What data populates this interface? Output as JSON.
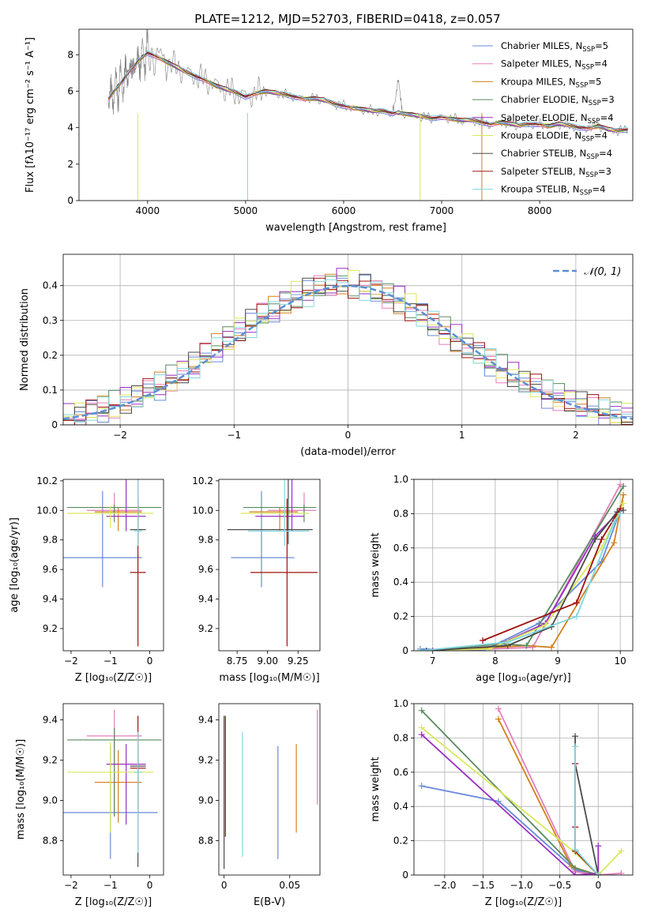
{
  "figure": {
    "title": "PLATE=1212, MJD=52703, FIBERID=0418, z=0.057"
  },
  "chart_data": [
    {
      "id": "spectrum",
      "type": "line",
      "title": "PLATE=1212, MJD=52703, FIBERID=0418, z=0.057",
      "xlabel": "wavelength [Angstrom, rest frame]",
      "ylabel": "Flux [f_λ 10^-17 erg cm^-2 s^-1 A^-1]",
      "xlim": [
        3300,
        8950
      ],
      "ylim": [
        0,
        9.4
      ],
      "xticks": [
        4000,
        5000,
        6000,
        7000,
        8000
      ],
      "yticks": [
        0,
        2,
        4,
        6,
        8
      ],
      "legend_position": "top-right",
      "data_series": {
        "name": "data",
        "color": "#808080",
        "x": [
          3600,
          3650,
          3700,
          3750,
          3800,
          3850,
          3900,
          3950,
          4000,
          4100,
          4200,
          4300,
          4400,
          4500,
          4600,
          4700,
          4800,
          4900,
          5000,
          5100,
          5200,
          5300,
          5400,
          5500,
          5600,
          5700,
          5800,
          5900,
          6000,
          6100,
          6200,
          6300,
          6400,
          6500,
          6560,
          6600,
          6700,
          6800,
          6900,
          7000,
          7100,
          7200,
          7300,
          7400,
          7500,
          7600,
          7700,
          7800,
          7900,
          8000,
          8100,
          8200,
          8300,
          8400,
          8500,
          8600,
          8700,
          8800,
          8900
        ],
        "y": [
          5.6,
          5.9,
          6.3,
          6.6,
          7.0,
          7.3,
          7.6,
          7.9,
          8.1,
          7.9,
          7.6,
          7.3,
          7.0,
          6.8,
          6.6,
          6.3,
          6.1,
          5.9,
          5.7,
          5.9,
          6.0,
          5.9,
          5.8,
          5.7,
          5.6,
          5.6,
          5.5,
          5.3,
          5.2,
          5.1,
          5.0,
          4.9,
          4.9,
          4.8,
          6.6,
          4.8,
          4.7,
          4.6,
          4.5,
          4.6,
          4.5,
          4.4,
          4.4,
          4.3,
          4.2,
          4.3,
          4.2,
          4.1,
          4.2,
          4.2,
          4.1,
          4.2,
          4.1,
          4.0,
          4.0,
          4.1,
          3.9,
          3.8,
          3.9
        ]
      },
      "model_series": [
        {
          "name": "Chabrier MILES",
          "nssp": "5",
          "color": "#6a89d8"
        },
        {
          "name": "Salpeter MILES",
          "nssp": "4",
          "color": "#e37fba"
        },
        {
          "name": "Kroupa MILES",
          "nssp": "5",
          "color": "#d3801c"
        },
        {
          "name": "Chabrier ELODIE",
          "nssp": "3",
          "color": "#5a8a5e"
        },
        {
          "name": "Salpeter ELODIE",
          "nssp": "4",
          "color": "#9a2ec2"
        },
        {
          "name": "Kroupa ELODIE",
          "nssp": "4",
          "color": "#d9e85a"
        },
        {
          "name": "Chabrier STELIB",
          "nssp": "4",
          "color": "#4a4a4a"
        },
        {
          "name": "Salpeter STELIB",
          "nssp": "3",
          "color": "#a01010"
        },
        {
          "name": "Kroupa STELIB",
          "nssp": "4",
          "color": "#7fd7e0"
        }
      ]
    },
    {
      "id": "residuals",
      "type": "histogram",
      "xlabel": "(data-model)/error",
      "ylabel": "Normed distribution",
      "xlim": [
        -2.5,
        2.5
      ],
      "ylim": [
        0,
        0.49
      ],
      "xticks": [
        -2,
        -1,
        0,
        1,
        2
      ],
      "yticks": [
        0.0,
        0.1,
        0.2,
        0.3,
        0.4
      ],
      "grid": true,
      "legend_position": "top-right",
      "reference_curve": {
        "name": "𝒩(0, 1)",
        "color": "#5b8ed6",
        "style": "dashed"
      },
      "bin_edges_start": -2.5,
      "bin_width": 0.1,
      "base_profile": [
        0.018,
        0.028,
        0.038,
        0.045,
        0.055,
        0.068,
        0.08,
        0.095,
        0.11,
        0.13,
        0.15,
        0.17,
        0.195,
        0.22,
        0.245,
        0.27,
        0.29,
        0.31,
        0.33,
        0.35,
        0.37,
        0.38,
        0.39,
        0.4,
        0.41,
        0.4,
        0.395,
        0.38,
        0.37,
        0.355,
        0.335,
        0.315,
        0.29,
        0.27,
        0.245,
        0.225,
        0.2,
        0.18,
        0.16,
        0.14,
        0.12,
        0.105,
        0.09,
        0.078,
        0.065,
        0.055,
        0.045,
        0.038,
        0.03,
        0.025
      ]
    },
    {
      "id": "age_vs_Z",
      "type": "errorbar",
      "xlabel": "Z [log10(Z/Z☉)]",
      "ylabel": "age  [log10(age/yr)]",
      "xlim": [
        -2.2,
        0.35
      ],
      "ylim": [
        9.05,
        10.21
      ],
      "xticks": [
        -2,
        -1,
        0
      ],
      "yticks": [
        9.2,
        9.4,
        9.6,
        9.8,
        10.0,
        10.2
      ],
      "points": [
        {
          "x": -1.2,
          "xerr": [
            1.0,
            1.0
          ],
          "y": 9.68,
          "yerr": [
            0.2,
            0.45
          ],
          "color": "#6a89d8"
        },
        {
          "x": -0.9,
          "xerr": [
            0.7,
            0.7
          ],
          "y": 10.0,
          "yerr": [
            0.03,
            0.12
          ],
          "color": "#e37fba"
        },
        {
          "x": -0.8,
          "xerr": [
            0.6,
            0.6
          ],
          "y": 9.99,
          "yerr": [
            0.13,
            0.03
          ],
          "color": "#d3801c"
        },
        {
          "x": -0.9,
          "xerr": [
            1.2,
            1.2
          ],
          "y": 10.02,
          "yerr": [
            0.1,
            0.02
          ],
          "color": "#5a8a5e"
        },
        {
          "x": -0.6,
          "xerr": [
            0.5,
            0.5
          ],
          "y": 9.96,
          "yerr": [
            0.1,
            0.4
          ],
          "color": "#9a2ec2"
        },
        {
          "x": -1.0,
          "xerr": [
            1.1,
            1.1
          ],
          "y": 9.98,
          "yerr": [
            0.1,
            0.05
          ],
          "color": "#d9e85a"
        },
        {
          "x": -0.3,
          "xerr": [
            0.2,
            0.2
          ],
          "y": 9.87,
          "yerr": [
            0.1,
            0.75
          ],
          "color": "#4a4a4a"
        },
        {
          "x": -0.3,
          "xerr": [
            0.2,
            0.2
          ],
          "y": 9.58,
          "yerr": [
            0.5,
            0.5
          ],
          "color": "#a01010"
        },
        {
          "x": -0.3,
          "xerr": [
            0.1,
            0.1
          ],
          "y": 9.86,
          "yerr": [
            0.1,
            0.72
          ],
          "color": "#7fd7e0"
        }
      ]
    },
    {
      "id": "age_vs_mass",
      "type": "errorbar",
      "xlabel": "mass [log10(M/M☉)]",
      "ylabel": "",
      "xlim": [
        8.6,
        9.43
      ],
      "ylim": [
        9.05,
        10.21
      ],
      "xticks": [
        8.75,
        9.0,
        9.25
      ],
      "yticks": [
        9.2,
        9.4,
        9.6,
        9.8,
        10.0,
        10.2
      ],
      "points": [
        {
          "x": 8.95,
          "xerr": [
            0.25,
            0.27
          ],
          "y": 9.68,
          "yerr": [
            0.2,
            0.45
          ],
          "color": "#6a89d8"
        },
        {
          "x": 9.3,
          "xerr": [
            0.3,
            0.1
          ],
          "y": 10.0,
          "yerr": [
            0.03,
            0.12
          ],
          "color": "#e37fba"
        },
        {
          "x": 9.1,
          "xerr": [
            0.25,
            0.15
          ],
          "y": 9.99,
          "yerr": [
            0.13,
            0.03
          ],
          "color": "#d3801c"
        },
        {
          "x": 9.3,
          "xerr": [
            0.5,
            0.1
          ],
          "y": 10.02,
          "yerr": [
            0.1,
            0.02
          ],
          "color": "#5a8a5e"
        },
        {
          "x": 9.2,
          "xerr": [
            0.3,
            0.1
          ],
          "y": 9.96,
          "yerr": [
            0.1,
            0.4
          ],
          "color": "#9a2ec2"
        },
        {
          "x": 9.14,
          "xerr": [
            0.36,
            0.2
          ],
          "y": 9.98,
          "yerr": [
            0.1,
            0.05
          ],
          "color": "#d9e85a"
        },
        {
          "x": 9.17,
          "xerr": [
            0.5,
            0.2
          ],
          "y": 9.87,
          "yerr": [
            0.1,
            0.75
          ],
          "color": "#4a4a4a"
        },
        {
          "x": 9.16,
          "xerr": [
            0.3,
            0.25
          ],
          "y": 9.58,
          "yerr": [
            0.5,
            0.5
          ],
          "color": "#a01010"
        },
        {
          "x": 9.14,
          "xerr": [
            0.3,
            0.2
          ],
          "y": 9.86,
          "yerr": [
            0.1,
            0.72
          ],
          "color": "#7fd7e0"
        }
      ]
    },
    {
      "id": "weight_vs_age",
      "type": "line",
      "xlabel": "age  [log10(age/yr)]",
      "ylabel": "mass weight",
      "xlim": [
        6.7,
        10.2
      ],
      "ylim": [
        0,
        1.0
      ],
      "xticks": [
        7,
        8,
        9,
        10
      ],
      "yticks": [
        0.0,
        0.2,
        0.4,
        0.6,
        0.8,
        1.0
      ],
      "grid": true,
      "series": [
        {
          "color": "#6a89d8",
          "x": [
            6.8,
            7.8,
            8.7,
            9.7,
            10.0
          ],
          "y": [
            0.01,
            0.0,
            0.16,
            0.52,
            0.82
          ]
        },
        {
          "color": "#e37fba",
          "x": [
            6.9,
            7.9,
            8.6,
            10.0
          ],
          "y": [
            0.0,
            0.01,
            0.02,
            0.97
          ]
        },
        {
          "color": "#d3801c",
          "x": [
            7.0,
            8.5,
            8.9,
            9.9,
            10.05
          ],
          "y": [
            0.0,
            0.03,
            0.02,
            0.63,
            0.91
          ]
        },
        {
          "color": "#5a8a5e",
          "x": [
            6.8,
            8.1,
            8.5,
            10.05
          ],
          "y": [
            0.0,
            0.04,
            0.03,
            0.96
          ]
        },
        {
          "color": "#9a2ec2",
          "x": [
            7.0,
            7.9,
            8.8,
            9.6,
            10.0
          ],
          "y": [
            0.0,
            0.01,
            0.16,
            0.67,
            0.82
          ]
        },
        {
          "color": "#d9e85a",
          "x": [
            6.8,
            7.9,
            8.8,
            9.7,
            10.05
          ],
          "y": [
            0.0,
            0.01,
            0.15,
            0.6,
            0.86
          ]
        },
        {
          "color": "#4a4a4a",
          "x": [
            6.9,
            8.2,
            8.9,
            9.6,
            9.95,
            10.05
          ],
          "y": [
            0.0,
            0.03,
            0.14,
            0.65,
            0.81,
            0.82
          ]
        },
        {
          "color": "#a01010",
          "x": [
            7.8,
            9.3,
            9.7,
            10.0
          ],
          "y": [
            0.06,
            0.28,
            0.65,
            0.83
          ]
        },
        {
          "color": "#7fd7e0",
          "x": [
            6.8,
            8.2,
            9.3,
            9.9,
            10.0
          ],
          "y": [
            0.0,
            0.05,
            0.2,
            0.75,
            0.8
          ]
        }
      ]
    },
    {
      "id": "mass_vs_Z",
      "type": "errorbar",
      "xlabel": "Z [log10(Z/Z☉)]",
      "ylabel": "mass [log10(M/M☉)]",
      "xlim": [
        -2.2,
        0.35
      ],
      "ylim": [
        8.63,
        9.48
      ],
      "xticks": [
        -2,
        -1,
        0
      ],
      "yticks": [
        8.8,
        9.0,
        9.2,
        9.4
      ],
      "points": [
        {
          "x": -1.0,
          "xerr": [
            1.2,
            1.2
          ],
          "y": 8.94,
          "yerr": [
            0.23,
            0.33
          ],
          "color": "#6a89d8"
        },
        {
          "x": -0.9,
          "xerr": [
            0.7,
            0.7
          ],
          "y": 9.32,
          "yerr": [
            0.4,
            0.13
          ],
          "color": "#e37fba"
        },
        {
          "x": -0.8,
          "xerr": [
            0.6,
            0.6
          ],
          "y": 9.09,
          "yerr": [
            0.2,
            0.16
          ],
          "color": "#d3801c"
        },
        {
          "x": -0.9,
          "xerr": [
            1.2,
            1.2
          ],
          "y": 9.3,
          "yerr": [
            0.38,
            0.06
          ],
          "color": "#5a8a5e"
        },
        {
          "x": -0.6,
          "xerr": [
            0.5,
            0.5
          ],
          "y": 9.18,
          "yerr": [
            0.3,
            0.1
          ],
          "color": "#9a2ec2"
        },
        {
          "x": -1.0,
          "xerr": [
            1.1,
            1.1
          ],
          "y": 9.14,
          "yerr": [
            0.3,
            0.15
          ],
          "color": "#d9e85a"
        },
        {
          "x": -0.3,
          "xerr": [
            0.2,
            0.2
          ],
          "y": 9.17,
          "yerr": [
            0.5,
            0.1
          ],
          "color": "#4a4a4a"
        },
        {
          "x": -0.3,
          "xerr": [
            0.2,
            0.2
          ],
          "y": 9.16,
          "yerr": [
            0.2,
            0.26
          ],
          "color": "#a01010"
        },
        {
          "x": -0.3,
          "xerr": [
            0.1,
            0.1
          ],
          "y": 9.14,
          "yerr": [
            0.4,
            0.2
          ],
          "color": "#7fd7e0"
        }
      ]
    },
    {
      "id": "mass_vs_ebv",
      "type": "errorbar",
      "xlabel": "E(B-V)",
      "ylabel": "",
      "xlim": [
        -0.004,
        0.073
      ],
      "ylim": [
        8.63,
        9.48
      ],
      "xticks": [
        0.0,
        0.05
      ],
      "yticks": [
        8.8,
        9.0,
        9.2,
        9.4
      ],
      "points": [
        {
          "x": 0.041,
          "y": 8.99,
          "yerr": [
            0.28,
            0.28
          ],
          "color": "#6a89d8"
        },
        {
          "x": 0.071,
          "y": 9.21,
          "yerr": [
            0.23,
            0.24
          ],
          "color": "#e37fba"
        },
        {
          "x": 0.055,
          "y": 9.06,
          "yerr": [
            0.22,
            0.22
          ],
          "color": "#d3801c"
        },
        {
          "x": 0.0,
          "y": 9.04,
          "yerr": [
            0.38,
            0.38
          ],
          "color": "#4a4a4a"
        },
        {
          "x": 0.001,
          "y": 9.12,
          "yerr": [
            0.3,
            0.3
          ],
          "color": "#a01010"
        },
        {
          "x": 0.014,
          "y": 9.03,
          "yerr": [
            0.31,
            0.31
          ],
          "color": "#7fd7e0"
        }
      ]
    },
    {
      "id": "weight_vs_Z",
      "type": "line",
      "xlabel": "Z [log10(Z/Z☉)]",
      "ylabel": "mass weight",
      "xlim": [
        -2.4,
        0.45
      ],
      "ylim": [
        0,
        1.0
      ],
      "xticks": [
        -2.0,
        -1.5,
        -1.0,
        -0.5,
        0.0
      ],
      "yticks": [
        0.0,
        0.2,
        0.4,
        0.6,
        0.8,
        1.0
      ],
      "grid": true,
      "series": [
        {
          "color": "#6a89d8",
          "x": [
            -2.3,
            -1.3,
            -0.3,
            0.0
          ],
          "y": [
            0.52,
            0.43,
            0.03,
            0.0
          ]
        },
        {
          "color": "#e37fba",
          "x": [
            -1.3,
            -0.3,
            0.0,
            0.3
          ],
          "y": [
            0.97,
            0.02,
            0.0,
            0.01
          ]
        },
        {
          "color": "#d3801c",
          "x": [
            -1.3,
            -0.35,
            0.0
          ],
          "y": [
            0.91,
            0.05,
            0.0
          ]
        },
        {
          "color": "#5a8a5e",
          "x": [
            -2.3,
            -0.3,
            0.0
          ],
          "y": [
            0.96,
            0.04,
            0.0
          ]
        },
        {
          "color": "#9a2ec2",
          "x": [
            -2.3,
            -0.3,
            0.0,
            0.0
          ],
          "y": [
            0.82,
            0.0,
            0.01,
            0.17
          ]
        },
        {
          "color": "#d9e85a",
          "x": [
            -2.3,
            -0.3,
            0.0,
            0.3
          ],
          "y": [
            0.86,
            0.13,
            0.0,
            0.14
          ]
        },
        {
          "color": "#4a4a4a",
          "x": [
            -0.3,
            -0.3,
            -0.3,
            0.0
          ],
          "y": [
            0.81,
            0.14,
            0.65,
            0.0
          ]
        },
        {
          "color": "#a01010",
          "x": [
            -0.3,
            -0.3,
            -0.3,
            0.0
          ],
          "y": [
            0.65,
            0.28,
            0.14,
            0.0
          ]
        },
        {
          "color": "#7fd7e0",
          "x": [
            -0.3,
            -0.3,
            0.0
          ],
          "y": [
            0.75,
            0.15,
            0.0
          ]
        }
      ]
    }
  ]
}
